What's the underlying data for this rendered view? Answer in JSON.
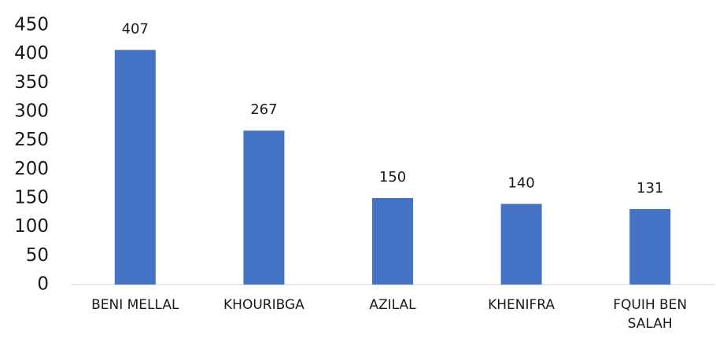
{
  "chart_data": {
    "type": "bar",
    "categories": [
      "BENI MELLAL",
      "KHOURIBGA",
      "AZILAL",
      "KHENIFRA",
      "FQUIH BEN SALAH"
    ],
    "values": [
      407,
      267,
      150,
      140,
      131
    ],
    "color": "#4472c4",
    "ylim": [
      0,
      450
    ],
    "yticks": [
      0,
      50,
      100,
      150,
      200,
      250,
      300,
      350,
      400,
      450
    ],
    "grid": false
  }
}
